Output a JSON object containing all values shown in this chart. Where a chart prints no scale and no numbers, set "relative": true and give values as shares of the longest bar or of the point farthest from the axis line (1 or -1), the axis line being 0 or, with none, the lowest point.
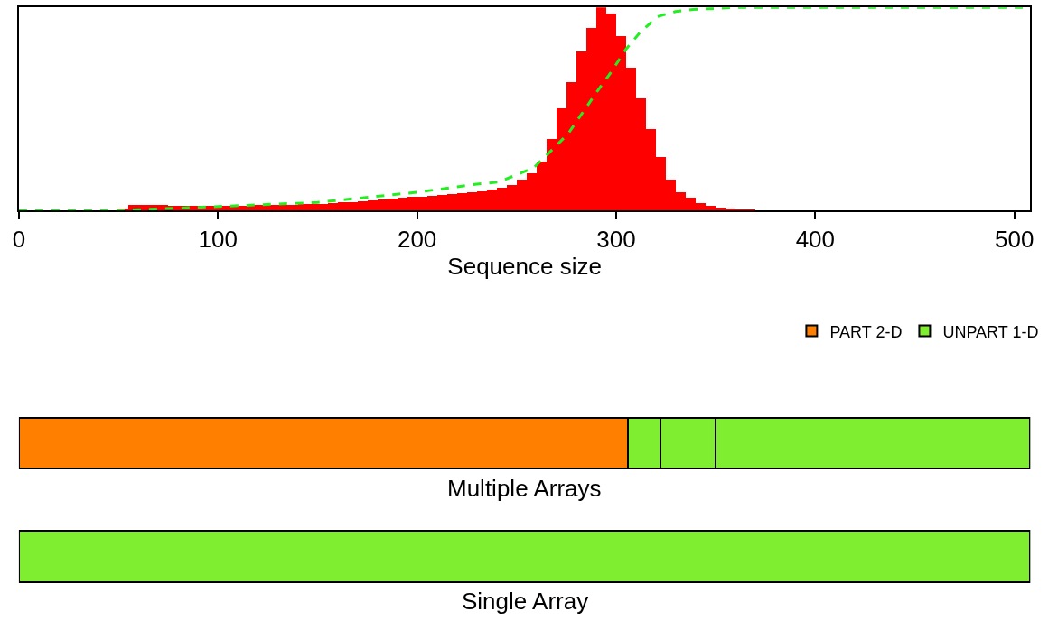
{
  "chart_data": [
    {
      "type": "histogram",
      "relative": true,
      "xlabel": "Sequence size",
      "xlim": [
        0,
        508
      ],
      "xticks": [
        0,
        100,
        200,
        300,
        400,
        500
      ],
      "color": "#ff0000",
      "legend": false,
      "bins": [
        50,
        55,
        60,
        65,
        70,
        75,
        80,
        85,
        90,
        95,
        100,
        105,
        110,
        115,
        120,
        125,
        130,
        135,
        140,
        145,
        150,
        155,
        160,
        165,
        170,
        175,
        180,
        185,
        190,
        195,
        200,
        205,
        210,
        215,
        220,
        225,
        230,
        235,
        240,
        245,
        250,
        255,
        260,
        265,
        270,
        275,
        280,
        285,
        290,
        295,
        300,
        305,
        310,
        315,
        320,
        325,
        330,
        335,
        340,
        345,
        350,
        355,
        360,
        365,
        370
      ],
      "values": [
        0.01,
        0.025,
        0.025,
        0.025,
        0.025,
        0.024,
        0.023,
        0.022,
        0.022,
        0.022,
        0.022,
        0.023,
        0.024,
        0.025,
        0.026,
        0.027,
        0.028,
        0.028,
        0.029,
        0.03,
        0.032,
        0.035,
        0.038,
        0.041,
        0.044,
        0.048,
        0.052,
        0.056,
        0.06,
        0.065,
        0.068,
        0.072,
        0.075,
        0.079,
        0.083,
        0.088,
        0.094,
        0.1,
        0.11,
        0.125,
        0.15,
        0.18,
        0.24,
        0.35,
        0.5,
        0.63,
        0.78,
        0.9,
        1.0,
        0.97,
        0.86,
        0.7,
        0.55,
        0.4,
        0.26,
        0.15,
        0.09,
        0.06,
        0.035,
        0.02,
        0.012,
        0.006,
        0.003,
        0.001
      ],
      "series": [
        {
          "type": "line",
          "color": "#22ee22",
          "line_style": "dashed",
          "marker": "none",
          "x": [
            0,
            50,
            100,
            150,
            200,
            230,
            241,
            258.5,
            269,
            276,
            283.7,
            290.7,
            297.4,
            304.6,
            311.8,
            320.8,
            329.8,
            338.7,
            360,
            508
          ],
          "values": [
            0,
            0,
            0.02,
            0.04,
            0.09,
            0.13,
            0.14,
            0.21,
            0.31,
            0.38,
            0.49,
            0.59,
            0.68,
            0.79,
            0.875,
            0.955,
            0.98,
            0.99,
            1,
            1
          ]
        }
      ]
    },
    {
      "type": "bar",
      "orientation": "horizontal",
      "stacked": true,
      "categories": [
        "Multiple Arrays",
        "Single Array"
      ],
      "xlim": [
        0,
        508
      ],
      "tick_labels": "y",
      "legend": "top right",
      "series": [
        {
          "name": "PART 2-D",
          "color": "#ff8000",
          "values": [
            306,
            null
          ]
        },
        {
          "name": "UNPART 1-D",
          "color": "#80ee30",
          "values": [
            16,
            508
          ]
        },
        {
          "color": "#80ee30",
          "values": [
            28,
            null
          ]
        },
        {
          "color": "#80ee30",
          "values": [
            158,
            null
          ]
        }
      ]
    }
  ]
}
